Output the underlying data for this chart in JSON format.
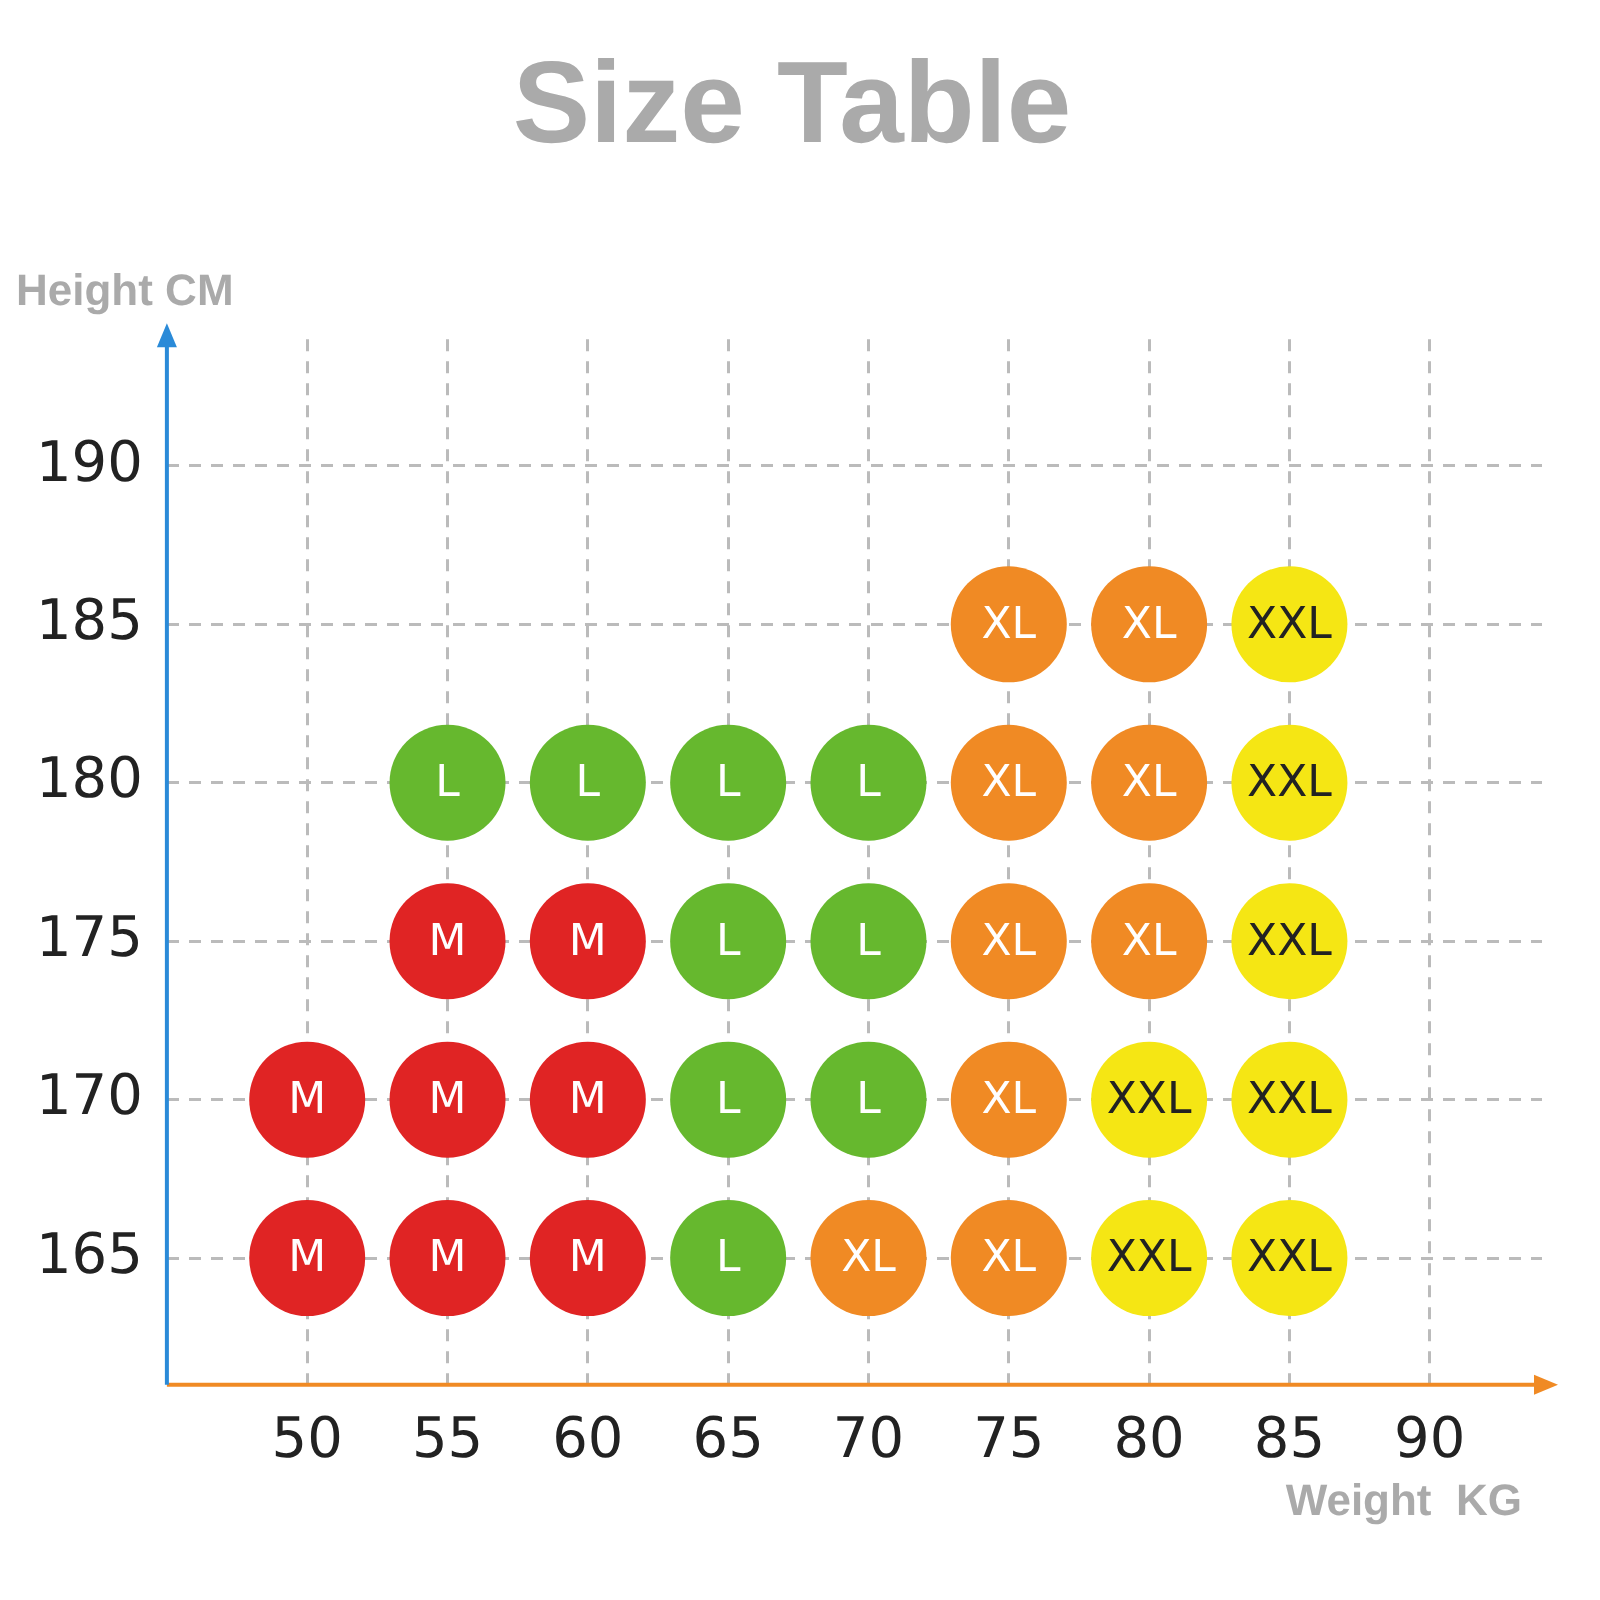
{
  "chart_data": {
    "type": "scatter",
    "title": "Size Table",
    "xlabel": "Weight  KG",
    "ylabel": "Height CM",
    "xlim": [
      45,
      94
    ],
    "xticks": [
      50,
      55,
      60,
      65,
      70,
      75,
      80,
      85,
      90
    ],
    "ylim": [
      161,
      194
    ],
    "yticks": [
      165,
      170,
      175,
      180,
      185,
      190
    ],
    "grid": true,
    "legend": false,
    "marker": "circle",
    "series": [
      {
        "name": "M",
        "color": "#e02424",
        "x": [
          50,
          50,
          55,
          55,
          55,
          60,
          60,
          60
        ],
        "values": [
          170,
          165,
          175,
          170,
          165,
          175,
          170,
          165
        ]
      },
      {
        "name": "L",
        "color": "#66b82e",
        "x": [
          55,
          60,
          65,
          70,
          65,
          70,
          65,
          70,
          65
        ],
        "values": [
          180,
          180,
          180,
          180,
          175,
          175,
          170,
          170,
          165
        ]
      },
      {
        "name": "XL",
        "color": "#f08a24",
        "x": [
          75,
          80,
          75,
          80,
          75,
          80,
          75,
          70,
          75
        ],
        "values": [
          185,
          185,
          180,
          180,
          175,
          175,
          170,
          165,
          165
        ]
      },
      {
        "name": "XXL",
        "color": "#f5e614",
        "x": [
          85,
          85,
          85,
          80,
          85,
          80,
          85
        ],
        "values": [
          185,
          180,
          175,
          170,
          170,
          165,
          165
        ]
      }
    ]
  }
}
